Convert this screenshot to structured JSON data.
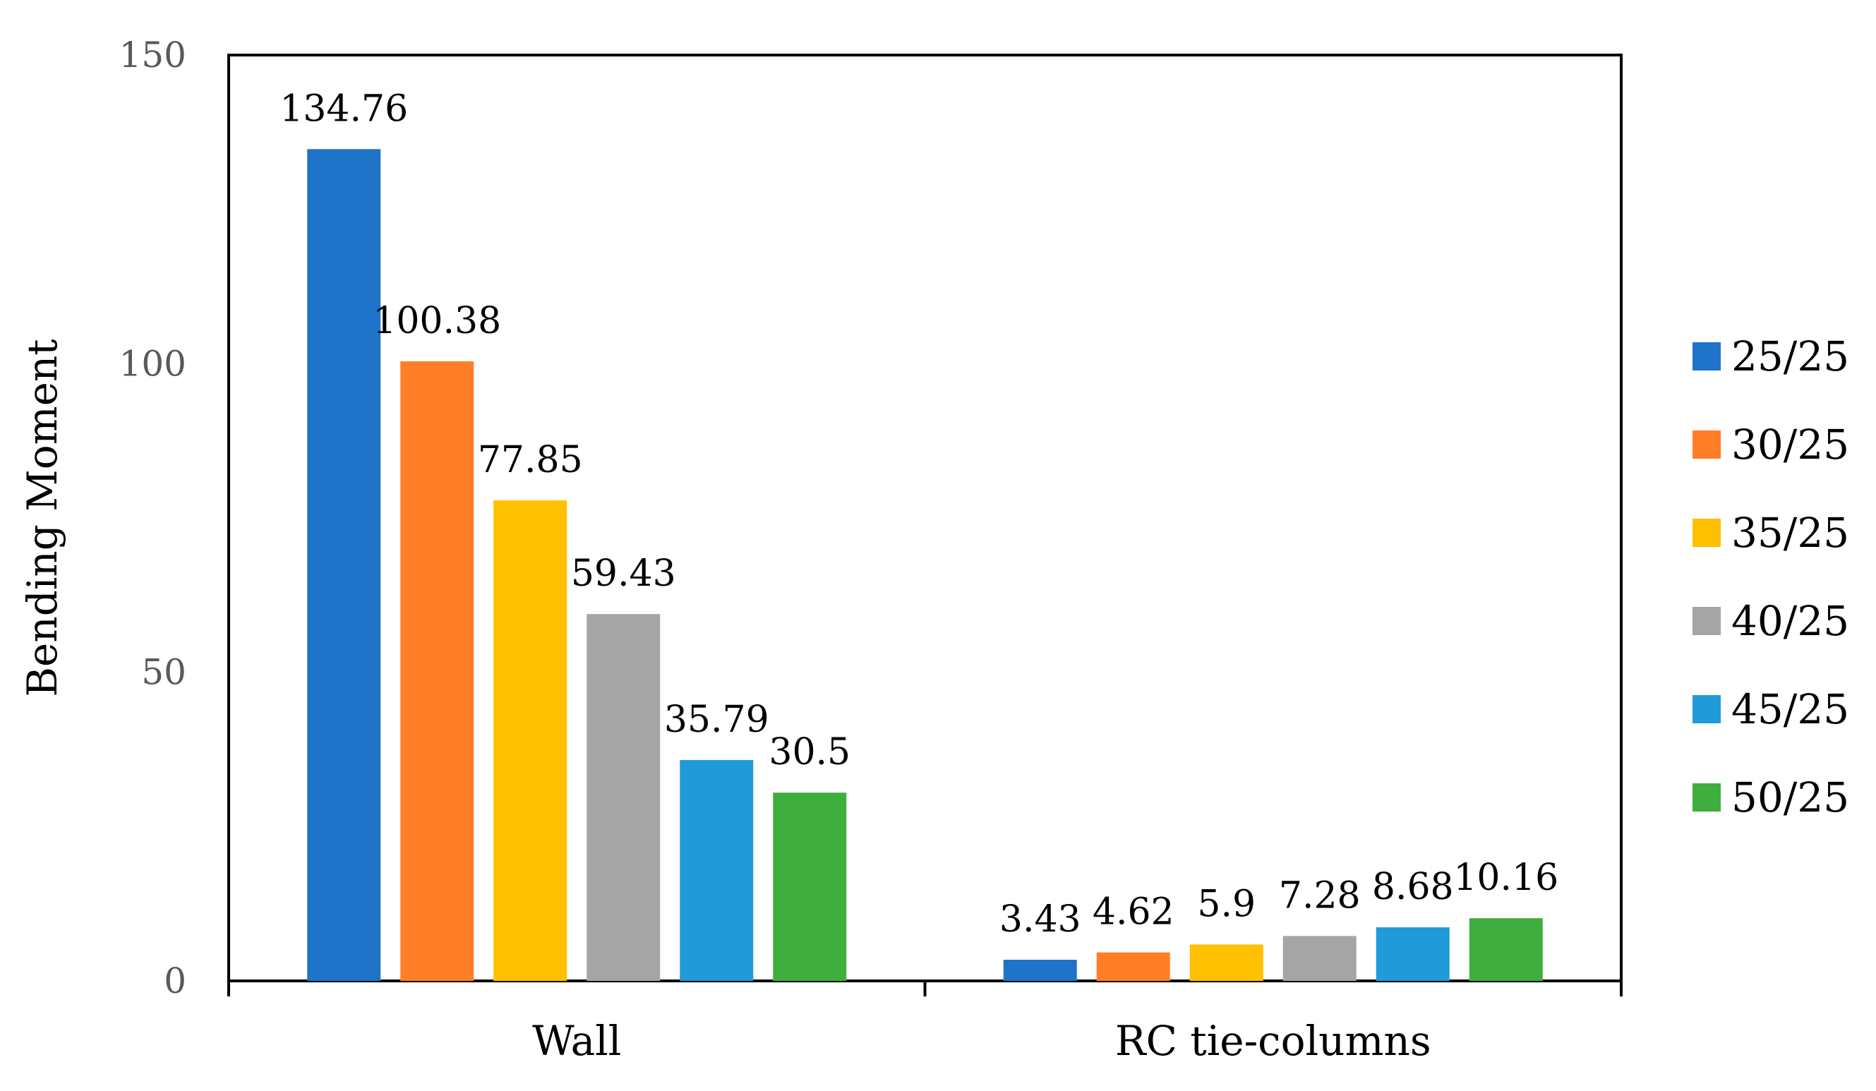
{
  "chart_data": {
    "type": "bar",
    "title": "",
    "xlabel": "",
    "ylabel": "Bending Moment",
    "ylim": [
      0,
      150
    ],
    "yticks": [
      0,
      50,
      100,
      150
    ],
    "grid": false,
    "legend_position": "right",
    "categories": [
      "Wall",
      "RC tie-columns"
    ],
    "series": [
      {
        "name": "25/25",
        "color": "#1F73C8",
        "values": [
          134.76,
          3.43
        ],
        "labels": [
          "134.76",
          "3.43"
        ]
      },
      {
        "name": "30/25",
        "color": "#FF7F27",
        "values": [
          100.38,
          4.62
        ],
        "labels": [
          "100.38",
          "4.62"
        ]
      },
      {
        "name": "35/25",
        "color": "#FFC000",
        "values": [
          77.85,
          5.9
        ],
        "labels": [
          "77.85",
          "5.9"
        ]
      },
      {
        "name": "40/25",
        "color": "#A5A5A5",
        "values": [
          59.43,
          7.28
        ],
        "labels": [
          "59.43",
          "7.28"
        ]
      },
      {
        "name": "45/25",
        "color": "#209AD8",
        "values": [
          35.79,
          8.68
        ],
        "labels": [
          "35.79",
          "8.68"
        ]
      },
      {
        "name": "50/25",
        "color": "#3FAE3F",
        "values": [
          30.5,
          10.16
        ],
        "labels": [
          "30.5",
          "10.16"
        ]
      }
    ]
  }
}
